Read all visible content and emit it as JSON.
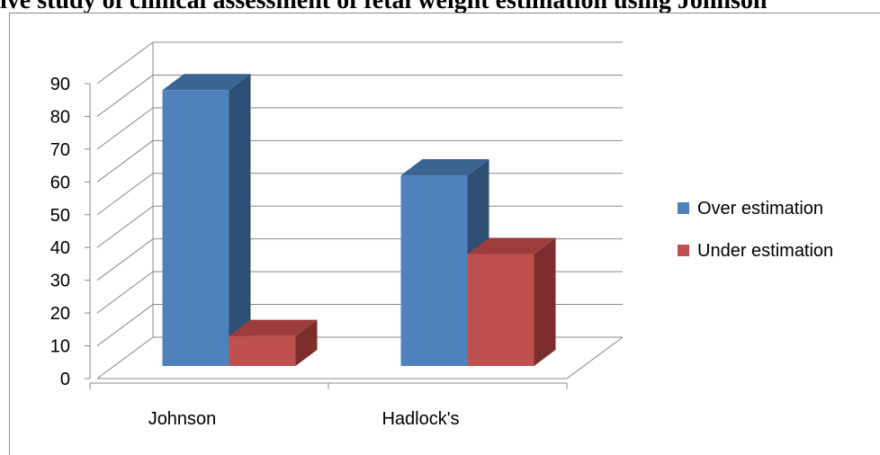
{
  "title": "ive study of clinical assessment of fetal weight estimation using Johnson",
  "colors": {
    "over_front": "#4f81bd",
    "over_side": "#2e4f75",
    "over_top": "#3c6491",
    "under_front": "#c0504d",
    "under_side": "#7d2e2c",
    "under_top": "#9c3d3b",
    "grid": "#888888"
  },
  "chart_data": {
    "type": "bar",
    "style": "3d-clustered-column",
    "categories": [
      "Johnson",
      "Hadlock's"
    ],
    "series": [
      {
        "name": "Over estimation",
        "values": [
          88,
          62
        ]
      },
      {
        "name": "Under estimation",
        "values": [
          13,
          38
        ]
      }
    ],
    "ylim": [
      0,
      90
    ],
    "yticks": [
      0,
      10,
      20,
      30,
      40,
      50,
      60,
      70,
      80,
      90
    ],
    "grid": true,
    "legend_position": "right"
  }
}
